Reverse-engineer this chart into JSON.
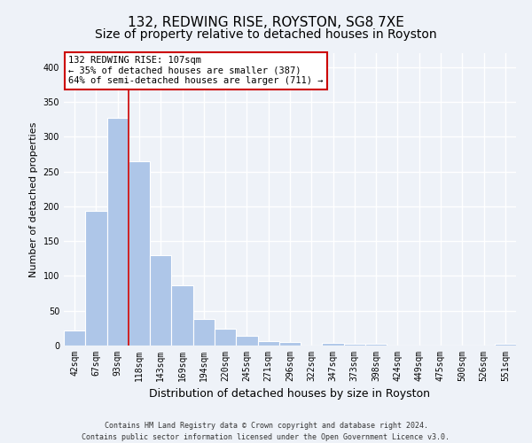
{
  "title1": "132, REDWING RISE, ROYSTON, SG8 7XE",
  "title2": "Size of property relative to detached houses in Royston",
  "xlabel": "Distribution of detached houses by size in Royston",
  "ylabel": "Number of detached properties",
  "footnote": "Contains HM Land Registry data © Crown copyright and database right 2024.\nContains public sector information licensed under the Open Government Licence v3.0.",
  "bar_labels": [
    "42sqm",
    "67sqm",
    "93sqm",
    "118sqm",
    "143sqm",
    "169sqm",
    "194sqm",
    "220sqm",
    "245sqm",
    "271sqm",
    "296sqm",
    "322sqm",
    "347sqm",
    "373sqm",
    "398sqm",
    "424sqm",
    "449sqm",
    "475sqm",
    "500sqm",
    "526sqm",
    "551sqm"
  ],
  "bar_values": [
    22,
    193,
    327,
    265,
    130,
    86,
    38,
    24,
    14,
    6,
    5,
    0,
    4,
    3,
    3,
    0,
    0,
    0,
    0,
    0,
    2
  ],
  "bar_color": "#aec6e8",
  "bar_edgecolor": "#aec6e8",
  "vline_x_pos": 2.5,
  "vline_color": "#cc0000",
  "annotation_text": "132 REDWING RISE: 107sqm\n← 35% of detached houses are smaller (387)\n64% of semi-detached houses are larger (711) →",
  "annotation_box_color": "#ffffff",
  "annotation_box_edgecolor": "#cc0000",
  "ylim": [
    0,
    420
  ],
  "yticks": [
    0,
    50,
    100,
    150,
    200,
    250,
    300,
    350,
    400
  ],
  "background_color": "#eef2f8",
  "grid_color": "#ffffff",
  "title1_fontsize": 11,
  "title2_fontsize": 10,
  "xlabel_fontsize": 9,
  "ylabel_fontsize": 8,
  "tick_fontsize": 7,
  "annotation_fontsize": 7.5
}
